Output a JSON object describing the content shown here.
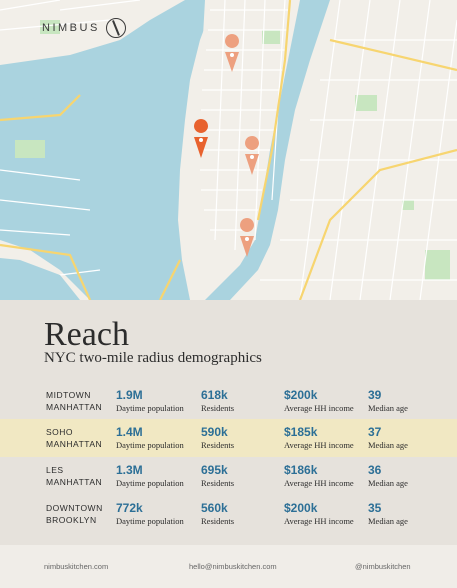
{
  "brand": {
    "name": "NIMBUS"
  },
  "heading": {
    "title": "Reach",
    "subtitle": "NYC two-mile radius demographics"
  },
  "rows": [
    {
      "neighborhood": "MIDTOWN\nMANHATTAN",
      "daytime_population": "1.9M",
      "daytime_label": "Daytime population",
      "residents": "618k",
      "residents_label": "Residents",
      "income": "$200k",
      "income_label": "Average HH income",
      "age": "39",
      "age_label": "Median age"
    },
    {
      "neighborhood": "SOHO\nMANHATTAN",
      "daytime_population": "1.4M",
      "daytime_label": "Daytime population",
      "residents": "590k",
      "residents_label": "Residents",
      "income": "$185k",
      "income_label": "Average HH income",
      "age": "37",
      "age_label": "Median age"
    },
    {
      "neighborhood": "LES\nMANHATTAN",
      "daytime_population": "1.3M",
      "daytime_label": "Daytime population",
      "residents": "695k",
      "residents_label": "Residents",
      "income": "$186k",
      "income_label": "Average HH income",
      "age": "36",
      "age_label": "Median age"
    },
    {
      "neighborhood": "DOWNTOWN\nBROOKLYN",
      "daytime_population": "772k",
      "daytime_label": "Daytime population",
      "residents": "560k",
      "residents_label": "Residents",
      "income": "$200k",
      "income_label": "Average HH income",
      "age": "35",
      "age_label": "Median age"
    }
  ],
  "footer": {
    "website": "nimbuskitchen.com",
    "email": "hello@nimbuskitchen.com",
    "social": "@nimbuskitchen"
  },
  "colors": {
    "accent": "#2c6f96",
    "highlight_row": "#f1e8c3",
    "pin_primary": "#e8622e",
    "pin_secondary": "#eda07f",
    "water": "#aad3df"
  },
  "map": {
    "pins": [
      "location-pin-icon",
      "location-pin-icon",
      "location-pin-icon",
      "location-pin-icon"
    ]
  }
}
